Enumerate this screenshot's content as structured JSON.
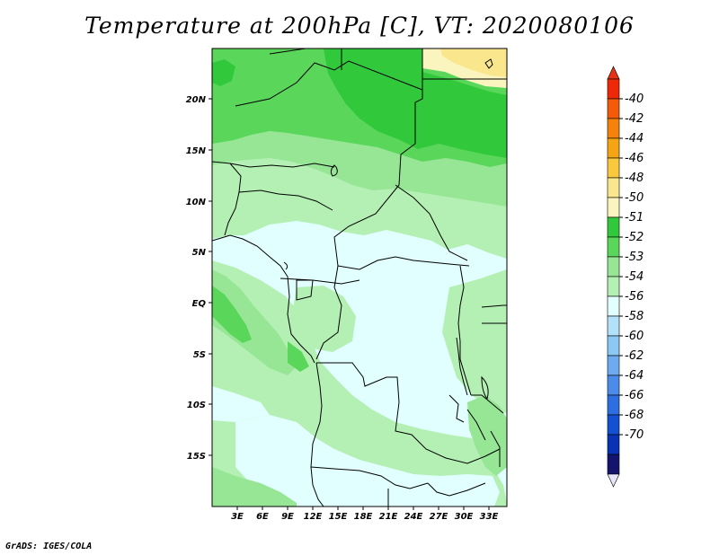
{
  "title": "Temperature at 200hPa [C], VT: 2020080106",
  "credit": "GrADS: IGES/COLA",
  "map": {
    "lon_labels": [
      "3E",
      "6E",
      "9E",
      "12E",
      "15E",
      "18E",
      "21E",
      "24E",
      "27E",
      "30E",
      "33E"
    ],
    "lat_labels": [
      "20N",
      "15N",
      "10N",
      "5N",
      "EQ",
      "5S",
      "10S",
      "15S"
    ]
  },
  "colorbar": {
    "labels": [
      "-40",
      "-42",
      "-44",
      "-46",
      "-48",
      "-50",
      "-51",
      "-52",
      "-53",
      "-54",
      "-56",
      "-58",
      "-60",
      "-62",
      "-64",
      "-66",
      "-68",
      "-70"
    ],
    "colors": [
      "#f0280a",
      "#f55a0a",
      "#f5820a",
      "#f5a514",
      "#fac83c",
      "#fae68c",
      "#faf5be",
      "#32c83c",
      "#5ad75a",
      "#96e696",
      "#b4f0b4",
      "#e1ffff",
      "#b4e1fa",
      "#8cc8f5",
      "#6eaaf0",
      "#4b8ceb",
      "#2d6ee1",
      "#1450d2",
      "#0a32b4",
      "#14146e"
    ],
    "top_color": "#e63214",
    "bottom_color": "#e6e6fa"
  },
  "legend_colors": {
    "light_cyan": "#e1ffff",
    "pale_green": "#b4f0b4",
    "light_green": "#96e696",
    "green": "#5ad75a",
    "dark_green": "#32c83c",
    "pale_yellow": "#faf5be",
    "yellow": "#fae68c"
  }
}
